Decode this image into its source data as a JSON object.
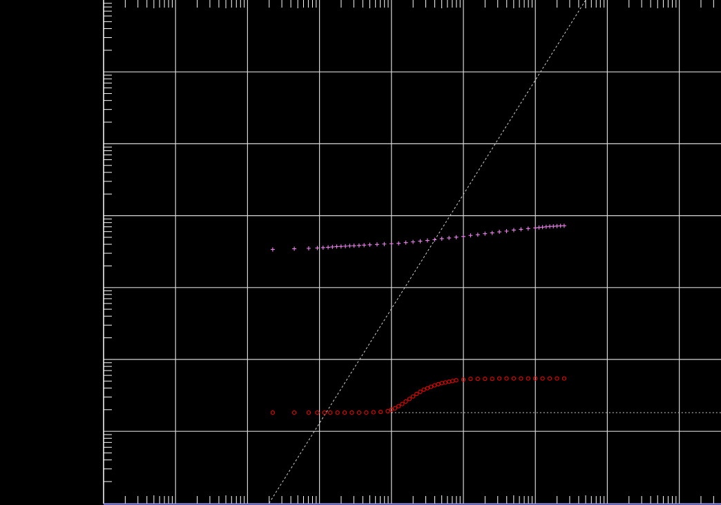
{
  "chart_data": {
    "type": "scatter",
    "title": "",
    "xlabel": "",
    "ylabel": "",
    "x_scale": "log",
    "y_scale": "log",
    "xlim_decades": [
      -3,
      5.6
    ],
    "ylim_decades": [
      -7,
      0
    ],
    "grid": true,
    "colors": {
      "background": "#000000",
      "grid": "#d8d8d8",
      "axis": "#ffffff",
      "bottom_axis": "#9999ff",
      "series_pink": "#ee82ee",
      "series_red": "#ff0000",
      "reference": "#d0d0d0"
    },
    "series": [
      {
        "marker": "plus",
        "color": "#ee82ee",
        "x_log": [
          -0.65,
          -0.35,
          -0.15,
          -0.03,
          0.05,
          0.12,
          0.18,
          0.24,
          0.3,
          0.36,
          0.42,
          0.48,
          0.55,
          0.62,
          0.7,
          0.8,
          0.9,
          1.0,
          1.1,
          1.2,
          1.3,
          1.4,
          1.5,
          1.6,
          1.7,
          1.8,
          1.9,
          2.0,
          2.1,
          2.2,
          2.3,
          2.4,
          2.5,
          2.6,
          2.7,
          2.8,
          2.9,
          3.0,
          3.05,
          3.1,
          3.15,
          3.2,
          3.25,
          3.3,
          3.35,
          3.4
        ],
        "y_log": [
          -3.47,
          -3.46,
          -3.455,
          -3.45,
          -3.445,
          -3.44,
          -3.435,
          -3.43,
          -3.428,
          -3.425,
          -3.42,
          -3.418,
          -3.415,
          -3.41,
          -3.405,
          -3.4,
          -3.395,
          -3.39,
          -3.385,
          -3.375,
          -3.365,
          -3.355,
          -3.345,
          -3.335,
          -3.32,
          -3.31,
          -3.3,
          -3.29,
          -3.275,
          -3.265,
          -3.25,
          -3.24,
          -3.225,
          -3.215,
          -3.2,
          -3.19,
          -3.18,
          -3.17,
          -3.165,
          -3.16,
          -3.155,
          -3.15,
          -3.148,
          -3.145,
          -3.142,
          -3.14
        ]
      },
      {
        "marker": "circle",
        "color": "#ff0000",
        "x_log": [
          -0.65,
          -0.35,
          -0.15,
          -0.03,
          0.07,
          0.15,
          0.25,
          0.35,
          0.45,
          0.55,
          0.65,
          0.75,
          0.85,
          0.95,
          1.0,
          1.05,
          1.1,
          1.15,
          1.2,
          1.25,
          1.3,
          1.35,
          1.4,
          1.45,
          1.5,
          1.55,
          1.6,
          1.65,
          1.7,
          1.75,
          1.8,
          1.85,
          1.9,
          2.0,
          2.1,
          2.2,
          2.3,
          2.4,
          2.5,
          2.6,
          2.7,
          2.8,
          2.9,
          3.0,
          3.1,
          3.2,
          3.3,
          3.4
        ],
        "y_log": [
          -5.74,
          -5.74,
          -5.74,
          -5.74,
          -5.74,
          -5.74,
          -5.74,
          -5.74,
          -5.74,
          -5.74,
          -5.74,
          -5.735,
          -5.73,
          -5.72,
          -5.7,
          -5.68,
          -5.65,
          -5.62,
          -5.585,
          -5.55,
          -5.515,
          -5.48,
          -5.45,
          -5.42,
          -5.4,
          -5.38,
          -5.36,
          -5.345,
          -5.33,
          -5.32,
          -5.31,
          -5.3,
          -5.29,
          -5.28,
          -5.27,
          -5.27,
          -5.27,
          -5.27,
          -5.265,
          -5.265,
          -5.265,
          -5.265,
          -5.265,
          -5.265,
          -5.265,
          -5.265,
          -5.265,
          -5.265
        ]
      }
    ],
    "reference_lines": [
      {
        "kind": "diagonal",
        "x_log": [
          -0.7,
          3.7
        ],
        "y_log": [
          -7.0,
          0.0
        ]
      },
      {
        "kind": "horizontal",
        "x_log_from": 1.0,
        "x_log_to": 5.6,
        "y_log": -5.74
      }
    ]
  }
}
